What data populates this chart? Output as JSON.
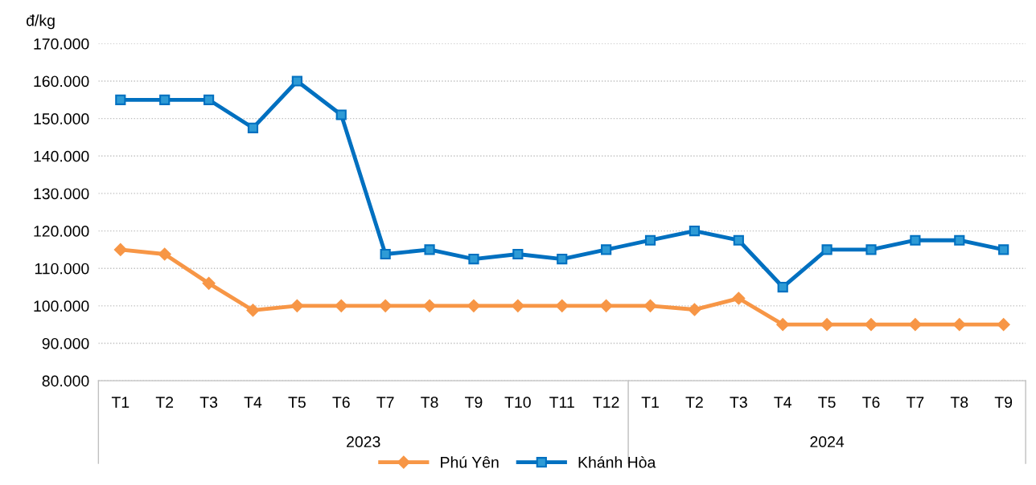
{
  "chart_data": {
    "type": "line",
    "ylabel": "đ/kg",
    "categories": [
      "T1",
      "T2",
      "T3",
      "T4",
      "T5",
      "T6",
      "T7",
      "T8",
      "T9",
      "T10",
      "T11",
      "T12",
      "T1",
      "T2",
      "T3",
      "T4",
      "T5",
      "T6",
      "T7",
      "T8",
      "T9"
    ],
    "annotations": [
      "2023",
      "2024"
    ],
    "series": [
      {
        "name": "Phú Yên",
        "color": "#f79646",
        "marker": "diamond",
        "values": [
          115000,
          113800,
          106000,
          98800,
          100000,
          100000,
          100000,
          100000,
          100000,
          100000,
          100000,
          100000,
          100000,
          99000,
          102000,
          95000,
          95000,
          95000,
          95000,
          95000,
          95000
        ]
      },
      {
        "name": "Khánh Hòa",
        "color": "#0070c0",
        "marker": "square",
        "values": [
          155000,
          155000,
          155000,
          147500,
          160000,
          151000,
          113800,
          115000,
          112500,
          113800,
          112500,
          115000,
          117500,
          120000,
          117500,
          105000,
          115000,
          115000,
          117500,
          117500,
          115000
        ]
      }
    ],
    "ylim": [
      80000,
      170000
    ],
    "yticks": [
      {
        "value": 80000,
        "label": "80.000"
      },
      {
        "value": 90000,
        "label": "90.000"
      },
      {
        "value": 100000,
        "label": "100.000"
      },
      {
        "value": 110000,
        "label": "110.000"
      },
      {
        "value": 120000,
        "label": "120.000"
      },
      {
        "value": 130000,
        "label": "130.000"
      },
      {
        "value": 140000,
        "label": "140.000"
      },
      {
        "value": 150000,
        "label": "150.000"
      },
      {
        "value": 160000,
        "label": "160.000"
      },
      {
        "value": 170000,
        "label": "170.000"
      }
    ],
    "grid": "y",
    "legend": "bottom",
    "line_style": "solid"
  }
}
